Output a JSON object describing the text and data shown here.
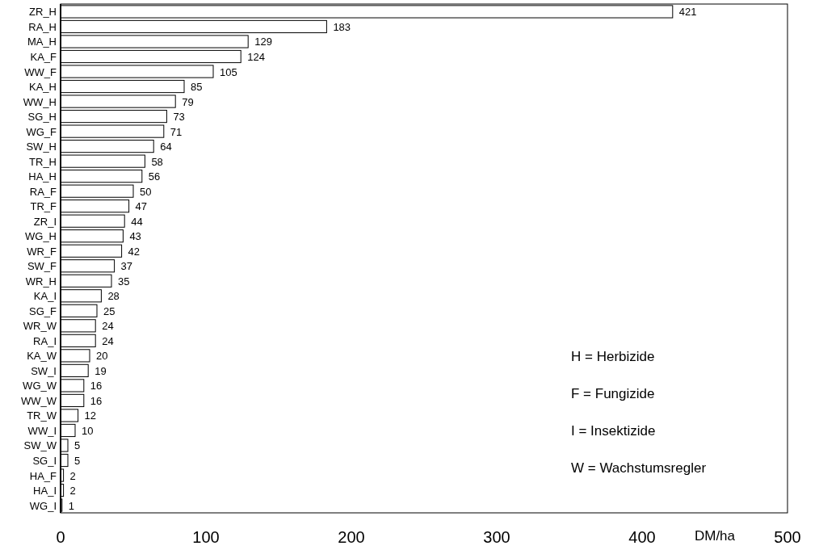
{
  "chart_data": {
    "type": "bar",
    "orientation": "horizontal",
    "xlabel": "DM/ha",
    "categories": [
      "ZR_H",
      "RA_H",
      "MA_H",
      "KA_F",
      "WW_F",
      "KA_H",
      "WW_H",
      "SG_H",
      "WG_F",
      "SW_H",
      "TR_H",
      "HA_H",
      "RA_F",
      "TR_F",
      "ZR_I",
      "WG_H",
      "WR_F",
      "SW_F",
      "WR_H",
      "KA_I",
      "SG_F",
      "WR_W",
      "RA_I",
      "KA_W",
      "SW_I",
      "WG_W",
      "WW_W",
      "TR_W",
      "WW_I",
      "SW_W",
      "SG_I",
      "HA_F",
      "HA_I",
      "WG_I"
    ],
    "values": [
      421,
      183,
      129,
      124,
      105,
      85,
      79,
      73,
      71,
      64,
      58,
      56,
      50,
      47,
      44,
      43,
      42,
      37,
      35,
      28,
      25,
      24,
      24,
      20,
      19,
      16,
      16,
      12,
      10,
      5,
      5,
      2,
      2,
      1
    ],
    "color": "#ffffff",
    "xlim": [
      0,
      500
    ],
    "xticks": [
      0,
      100,
      200,
      300,
      400,
      500
    ],
    "data_labels": true,
    "grid": false,
    "annotations": [
      "H = Herbizide",
      "F = Fungizide",
      "I = Insektizide",
      "W = Wachstumsregler"
    ]
  }
}
